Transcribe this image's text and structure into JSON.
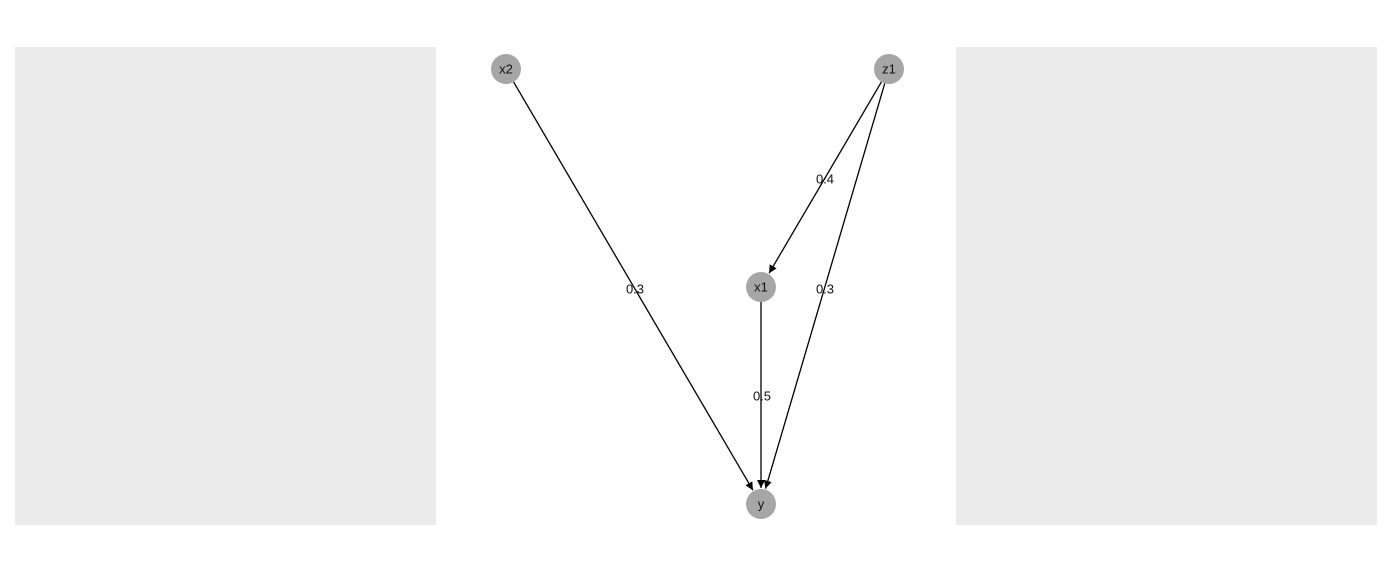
{
  "diagram": {
    "nodes": [
      {
        "id": "x2",
        "label": "x2"
      },
      {
        "id": "z1",
        "label": "z1"
      },
      {
        "id": "x1",
        "label": "x1"
      },
      {
        "id": "y",
        "label": "y"
      }
    ],
    "edges": [
      {
        "from": "x2",
        "to": "y",
        "label": "0.3"
      },
      {
        "from": "z1",
        "to": "x1",
        "label": "0.4"
      },
      {
        "from": "z1",
        "to": "y",
        "label": "0.3"
      },
      {
        "from": "x1",
        "to": "y",
        "label": "0.5"
      }
    ],
    "colors": {
      "node": "#a6a6a6",
      "edge": "#000000",
      "panel": "#ebebeb"
    }
  }
}
